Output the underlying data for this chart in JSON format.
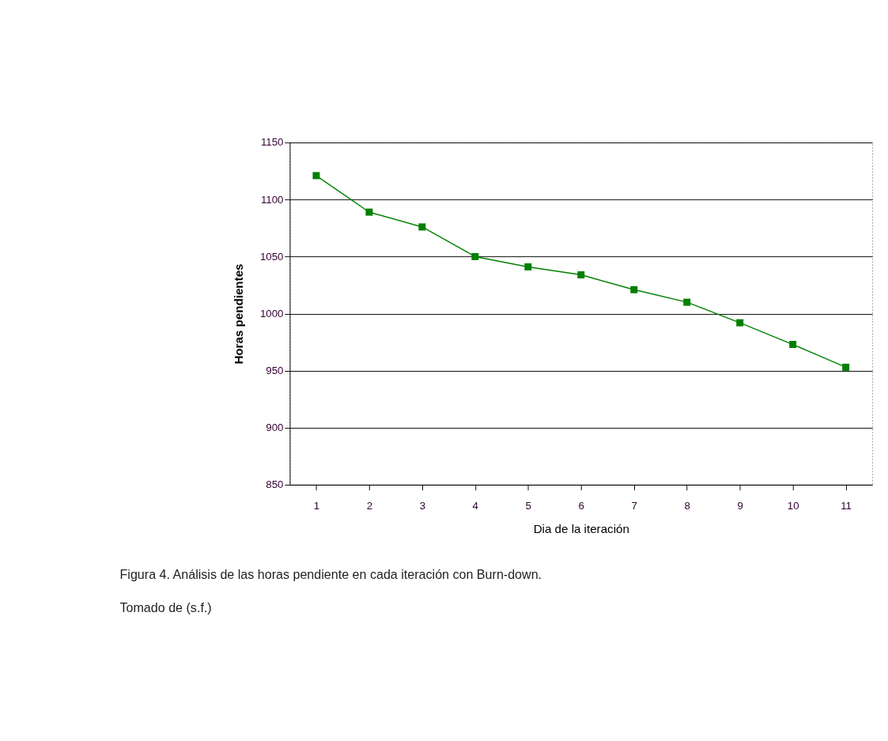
{
  "chart_data": {
    "type": "line",
    "xlabel": "Dia de la iteración",
    "ylabel": "Horas pendientes",
    "categories": [
      "1",
      "2",
      "3",
      "4",
      "5",
      "6",
      "7",
      "8",
      "9",
      "10",
      "11"
    ],
    "series": [
      {
        "color": "#008000",
        "values": [
          1121,
          1089,
          1076,
          1050,
          1041,
          1034,
          1021,
          1010,
          992,
          973,
          953
        ]
      }
    ],
    "ylim": [
      850,
      1150
    ],
    "yticks": [
      850,
      900,
      950,
      1000,
      1050,
      1100,
      1150
    ],
    "grid": "y",
    "marker": "square",
    "line_style": "solid",
    "annotations": [
      "Figura 4. Análisis de las horas pendiente en cada iteración con Burn-down.",
      "Tomado de (s.f.)"
    ]
  }
}
